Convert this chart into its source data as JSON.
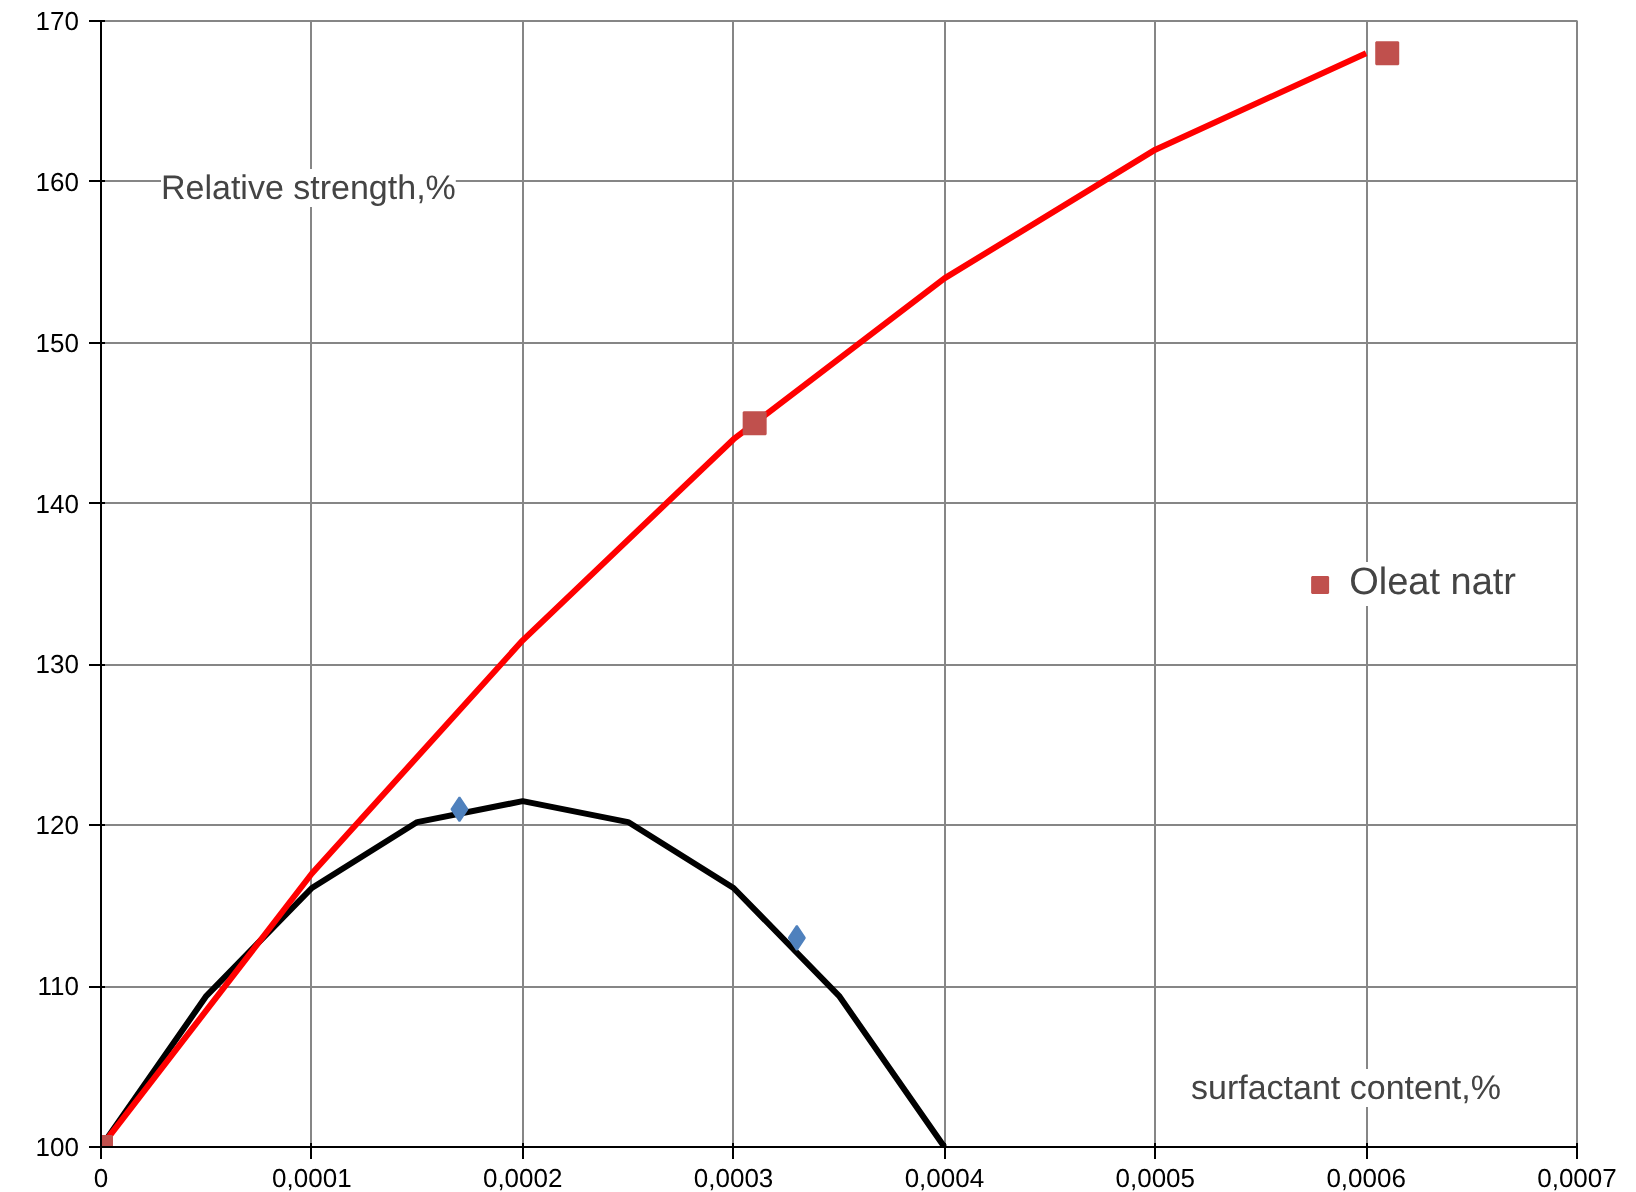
{
  "chart_data": {
    "type": "scatter",
    "xlabel": "surfactant content,%",
    "ylabel": "Relative strength,%",
    "xlim": [
      0,
      0.0007
    ],
    "ylim": [
      100,
      170
    ],
    "xticks": [
      0,
      {
        "value": 0.0001,
        "label": "0,0001"
      },
      {
        "value": 0.0002,
        "label": "0,0002"
      },
      {
        "value": 0.0003,
        "label": "0,0003"
      },
      {
        "value": 0.0004,
        "label": "0,0004"
      },
      {
        "value": 0.0005,
        "label": "0,0005"
      },
      {
        "value": 0.0006,
        "label": "0,0006"
      },
      {
        "value": 0.0007,
        "label": "0,0007"
      }
    ],
    "yticks": [
      100,
      110,
      120,
      130,
      140,
      150,
      160,
      170
    ],
    "grid": true,
    "legend": "right",
    "series": [
      {
        "type": "line",
        "color": "#000000",
        "x": [
          0,
          5e-05,
          0.0001,
          0.00015,
          0.0002,
          0.00025,
          0.0003,
          0.00035,
          0.0004
        ],
        "values": [
          100,
          109.4,
          116.1,
          120.2,
          121.5,
          120.2,
          116.1,
          109.4,
          100
        ]
      },
      {
        "type": "line",
        "color": "#ff0000",
        "x": [
          0,
          0.0001,
          0.0002,
          0.0003,
          0.0004,
          0.0005,
          0.0006
        ],
        "values": [
          100,
          117,
          131.5,
          144,
          154,
          162,
          168
        ]
      },
      {
        "marker": "diamond",
        "color": "#4f81bd",
        "x": [
          0.00017,
          0.00033
        ],
        "values": [
          121,
          113
        ]
      },
      {
        "marker": "square",
        "name": "Oleat natr",
        "color": "#c0504d",
        "x": [
          0,
          0.00031,
          0.00061
        ],
        "values": [
          100,
          145,
          168
        ]
      }
    ]
  }
}
